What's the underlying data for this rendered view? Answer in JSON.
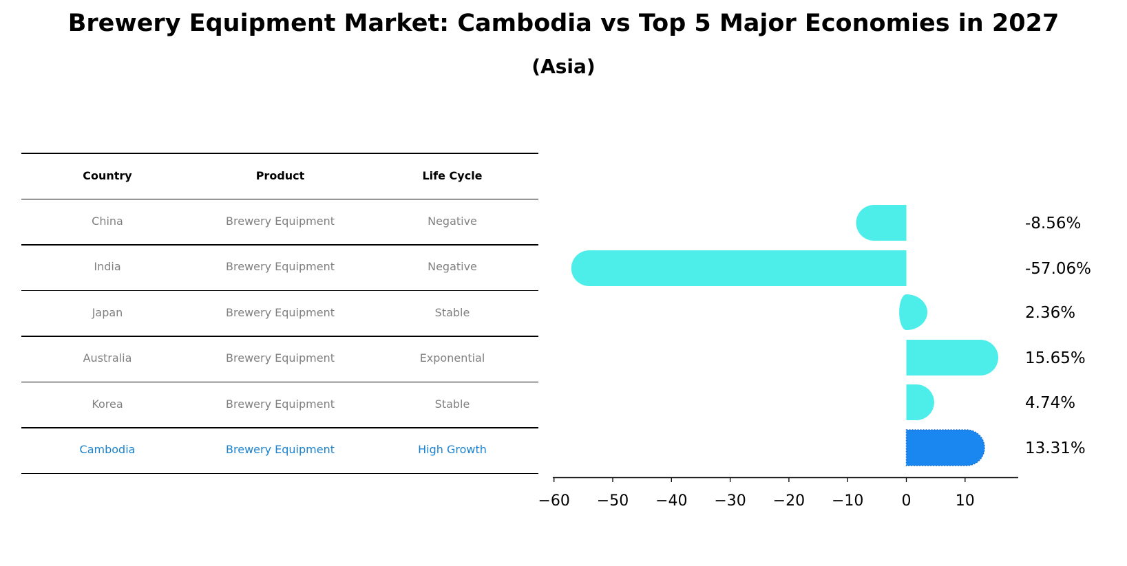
{
  "title": "Brewery Equipment Market: Cambodia vs Top 5 Major Economies in 2027",
  "subtitle": "(Asia)",
  "table": {
    "headers": [
      "Country",
      "Product",
      "Life Cycle"
    ],
    "rows": [
      {
        "country": "China",
        "product": "Brewery Equipment",
        "life_cycle": "Negative",
        "highlight": false
      },
      {
        "country": "India",
        "product": "Brewery Equipment",
        "life_cycle": "Negative",
        "highlight": false
      },
      {
        "country": "Japan",
        "product": "Brewery Equipment",
        "life_cycle": "Stable",
        "highlight": false
      },
      {
        "country": "Australia",
        "product": "Brewery Equipment",
        "life_cycle": "Exponential",
        "highlight": false
      },
      {
        "country": "Korea",
        "product": "Brewery Equipment",
        "life_cycle": "Stable",
        "highlight": false
      },
      {
        "country": "Cambodia",
        "product": "Brewery Equipment",
        "life_cycle": "High Growth",
        "highlight": true
      }
    ]
  },
  "colors": {
    "bar": "#4deeea",
    "highlight_bar": "#1a86f0",
    "highlight_text": "#1a82d0",
    "muted_text": "#808080"
  },
  "chart_data": {
    "type": "bar",
    "orientation": "horizontal",
    "title": "Brewery Equipment Market: Cambodia vs Top 5 Major Economies in 2027",
    "subtitle": "(Asia)",
    "categories": [
      "China",
      "India",
      "Japan",
      "Australia",
      "Korea",
      "Cambodia"
    ],
    "values": [
      -8.56,
      -57.06,
      2.36,
      15.65,
      4.74,
      13.31
    ],
    "labels": [
      "-8.56%",
      "-57.06%",
      "2.36%",
      "15.65%",
      "4.74%",
      "13.31%"
    ],
    "highlight": "Cambodia",
    "xlabel": "",
    "ylabel": "",
    "xticks": [
      -60,
      -50,
      -40,
      -30,
      -20,
      -10,
      0,
      10
    ],
    "xtick_labels": [
      "−60",
      "−50",
      "−40",
      "−30",
      "−20",
      "−10",
      "0",
      "10"
    ],
    "xlim": [
      -60.6,
      18.6
    ],
    "grid": false,
    "legend": null
  }
}
